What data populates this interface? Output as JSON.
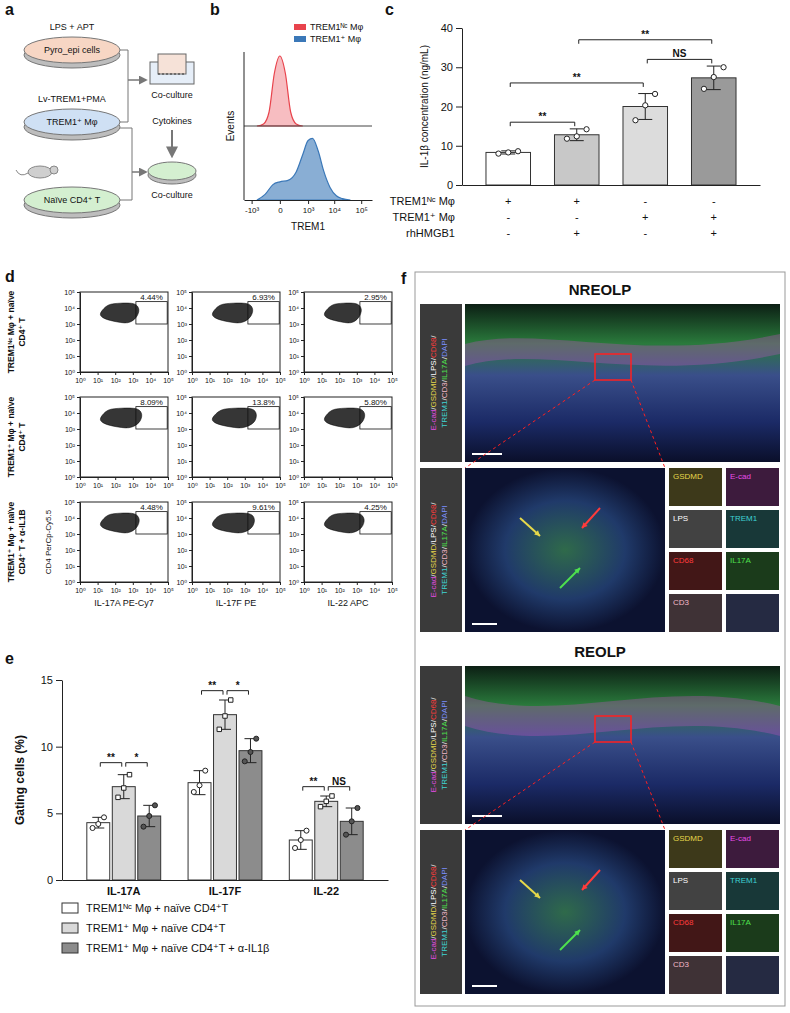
{
  "schematic": {
    "label": "a",
    "steps": [
      {
        "treatment": "LPS + APT",
        "cells": "Pyro_epi cells"
      },
      {
        "treatment": "Lv-TREM1+PMA",
        "cells": "TREM1⁺ Mφ"
      },
      {
        "cells": "Naïve CD4⁺ T"
      }
    ],
    "co_culture": [
      "Co-culture",
      "Co-culture"
    ],
    "cytokines": "Cytokines"
  },
  "chart_data": [
    {
      "label": "b",
      "type": "line",
      "x_label": "TREM1",
      "y_label": "Events",
      "log": "x",
      "xlim": [
        -2000,
        250000
      ],
      "xticks": [
        {
          "value": -1000,
          "label": "-10³"
        },
        0,
        {
          "value": 1000,
          "label": "10³"
        },
        {
          "value": 10000,
          "label": "10⁴"
        },
        {
          "value": 100000,
          "label": "10⁵"
        }
      ],
      "ylim": [
        0,
        100
      ],
      "tick_labels": "x",
      "legend": "top right",
      "series": [
        {
          "name": "TREM1ᴺᶜ Mφ",
          "color": "#e8434c",
          "x": [
            -600,
            -300,
            -150,
            -60,
            0,
            60,
            150,
            300,
            600
          ],
          "values": [
            0,
            3,
            20,
            75,
            100,
            75,
            20,
            3,
            0
          ]
        },
        {
          "name": "TREM1⁺ Mφ",
          "color": "#3b78b8",
          "x": [
            -600,
            -250,
            -80,
            0,
            100,
            300,
            600,
            1000,
            1500,
            2500,
            4000,
            7000,
            12000,
            20000,
            40000
          ],
          "values": [
            0,
            8,
            22,
            26,
            28,
            40,
            65,
            85,
            88,
            70,
            42,
            18,
            6,
            2,
            0
          ]
        }
      ]
    },
    {
      "label": "c",
      "type": "bar",
      "y_label": "IL-1β concentration (ng/mL)",
      "categories": [
        null,
        null,
        null,
        null
      ],
      "values": [
        8.3,
        12.8,
        20.0,
        27.3
      ],
      "errors": [
        0.4,
        1.5,
        3.3,
        3.0
      ],
      "points": [
        [
          8.0,
          8.3,
          8.6
        ],
        [
          11.8,
          12.4,
          14.2
        ],
        [
          16.5,
          20.3,
          23.2
        ],
        [
          24.5,
          27.5,
          30.0
        ]
      ],
      "colors": [
        "#ffffff",
        "#c8c8c8",
        "#dcdcdc",
        "#9a9a9a"
      ],
      "marker": "circle",
      "ylim": [
        0,
        40
      ],
      "yticks": [
        0,
        10,
        20,
        30,
        40
      ],
      "conditions": [
        {
          "name": "TREM1ᴺᶜ Mφ",
          "signs": [
            "+",
            "+",
            "-",
            "-"
          ]
        },
        {
          "name": "TREM1⁺ Mφ",
          "signs": [
            "-",
            "-",
            "+",
            "+"
          ]
        },
        {
          "name": "rhHMGB1",
          "signs": [
            "-",
            "+",
            "-",
            "+"
          ]
        }
      ],
      "significance": [
        {
          "from": 0,
          "to": 1,
          "text": "**",
          "y": 16
        },
        {
          "from": 0,
          "to": 2,
          "text": "**",
          "y": 26
        },
        {
          "from": 2,
          "to": 3,
          "text": "NS",
          "y": 32
        },
        {
          "from": 1,
          "to": 3,
          "text": "**",
          "y": 37
        }
      ]
    },
    {
      "label": "d",
      "type": "scatter",
      "log": true,
      "y_label": "CD4 PerCp-Cy5.5",
      "x_labels": [
        "IL-17A PE-Cy7",
        "IL-17F PE",
        "IL-22 APC"
      ],
      "row_labels": [
        "TREM1ᴺᶜ Mφ + naïve CD4⁺ T",
        "TREM1⁺ Mφ + naïve CD4⁺ T",
        "TREM1⁺ Mφ + naïve CD4⁺ T + α-IL1B"
      ],
      "xlim": [
        1,
        100000
      ],
      "ylim": [
        1,
        100000
      ],
      "xticks": [
        {
          "value": 1,
          "label": "10⁰"
        },
        {
          "value": 10,
          "label": "10¹"
        },
        {
          "value": 100,
          "label": "10²"
        },
        {
          "value": 1000,
          "label": "10³"
        },
        {
          "value": 10000,
          "label": "10⁴"
        },
        {
          "value": 100000,
          "label": "10⁵"
        }
      ],
      "yticks": [
        {
          "value": 1,
          "label": "10⁰"
        },
        {
          "value": 10,
          "label": "10¹"
        },
        {
          "value": 100,
          "label": "10²"
        },
        {
          "value": 1000,
          "label": "10³"
        },
        {
          "value": 10000,
          "label": "10⁴"
        },
        {
          "value": 100000,
          "label": "10⁵"
        }
      ],
      "plots": [
        [
          {
            "percent": "4.44%",
            "gate": {
              "x": [
                1500,
                90000
              ],
              "y": [
                1000,
                25000
              ]
            },
            "cloud": {
              "x": [
                15,
                40,
                200,
                1200,
                2200,
                1500,
                500,
                80,
                20
              ],
              "y": [
                5000,
                15000,
                20000,
                18000,
                8000,
                2500,
                1200,
                1500,
                2500
              ]
            }
          },
          {
            "percent": "6.93%",
            "gate": {
              "x": [
                1500,
                90000
              ],
              "y": [
                1000,
                25000
              ]
            },
            "cloud": {
              "x": [
                15,
                40,
                220,
                1500,
                2800,
                1900,
                550,
                80,
                20
              ],
              "y": [
                5000,
                15000,
                20000,
                18000,
                8000,
                2500,
                1200,
                1500,
                2500
              ]
            }
          },
          {
            "percent": "2.95%",
            "gate": {
              "x": [
                1500,
                90000
              ],
              "y": [
                1000,
                25000
              ]
            },
            "cloud": {
              "x": [
                15,
                40,
                180,
                1000,
                1800,
                1250,
                450,
                80,
                20
              ],
              "y": [
                5000,
                15000,
                20000,
                18000,
                8000,
                2500,
                1200,
                1500,
                2500
              ]
            }
          }
        ],
        [
          {
            "percent": "8.09%",
            "gate": {
              "x": [
                1500,
                90000
              ],
              "y": [
                1000,
                25000
              ]
            },
            "cloud": {
              "x": [
                15,
                40,
                240,
                1700,
                3200,
                2200,
                600,
                80,
                20
              ],
              "y": [
                5000,
                15000,
                20000,
                18000,
                8000,
                2500,
                1200,
                1500,
                2500
              ]
            }
          },
          {
            "percent": "13.8%",
            "gate": {
              "x": [
                1500,
                90000
              ],
              "y": [
                1000,
                25000
              ]
            },
            "cloud": {
              "x": [
                15,
                45,
                280,
                2400,
                4500,
                3100,
                700,
                90,
                20
              ],
              "y": [
                5000,
                15000,
                20000,
                18000,
                8000,
                2500,
                1200,
                1500,
                2500
              ]
            }
          },
          {
            "percent": "5.80%",
            "gate": {
              "x": [
                1500,
                90000
              ],
              "y": [
                1000,
                25000
              ]
            },
            "cloud": {
              "x": [
                15,
                40,
                220,
                1500,
                2800,
                1900,
                550,
                80,
                20
              ],
              "y": [
                5000,
                15000,
                20000,
                18000,
                8000,
                2500,
                1200,
                1500,
                2500
              ]
            }
          }
        ],
        [
          {
            "percent": "4.48%",
            "gate": {
              "x": [
                1500,
                90000
              ],
              "y": [
                1000,
                25000
              ]
            },
            "cloud": {
              "x": [
                15,
                40,
                200,
                1250,
                2300,
                1600,
                500,
                80,
                20
              ],
              "y": [
                5000,
                15000,
                20000,
                18000,
                8000,
                2500,
                1200,
                1500,
                2500
              ]
            }
          },
          {
            "percent": "9.61%",
            "gate": {
              "x": [
                1500,
                90000
              ],
              "y": [
                1000,
                25000
              ]
            },
            "cloud": {
              "x": [
                15,
                40,
                250,
                1900,
                3500,
                2400,
                620,
                80,
                20
              ],
              "y": [
                5000,
                15000,
                20000,
                18000,
                8000,
                2500,
                1200,
                1500,
                2500
              ]
            }
          },
          {
            "percent": "4.25%",
            "gate": {
              "x": [
                1500,
                90000
              ],
              "y": [
                1000,
                25000
              ]
            },
            "cloud": {
              "x": [
                15,
                40,
                210,
                1400,
                2600,
                1800,
                520,
                80,
                20
              ],
              "y": [
                5000,
                15000,
                20000,
                18000,
                8000,
                2500,
                1200,
                1500,
                2500
              ]
            }
          }
        ]
      ]
    },
    {
      "label": "e",
      "type": "bar",
      "y_label": "Gating cells (%)",
      "categories": [
        "IL-17A",
        "IL-17F",
        "IL-22"
      ],
      "ylim": [
        0,
        15
      ],
      "yticks": [
        0,
        5,
        10,
        15
      ],
      "legend": "bottom",
      "series": [
        {
          "name": "TREM1ᴺᶜ Mφ + naïve CD4⁺T",
          "color": "#ffffff",
          "marker": "circle",
          "values": [
            4.3,
            7.3,
            3.0
          ],
          "errors": [
            0.4,
            0.9,
            0.7
          ],
          "points": [
            [
              3.9,
              4.2,
              4.7
            ],
            [
              6.6,
              7.1,
              8.2
            ],
            [
              2.4,
              3.0,
              3.7
            ]
          ]
        },
        {
          "name": "TREM1⁺ Mφ + naïve CD4⁺T",
          "color": "#d9d9d9",
          "marker": "square",
          "values": [
            7.0,
            12.4,
            5.9
          ],
          "errors": [
            0.9,
            1.1,
            0.4
          ],
          "points": [
            [
              6.2,
              6.9,
              7.9
            ],
            [
              11.3,
              12.3,
              13.5
            ],
            [
              5.5,
              5.9,
              6.3
            ]
          ]
        },
        {
          "name": "TREM1⁺ Mφ + naïve CD4⁺T + α-IL1β",
          "color": "#8c8c8c",
          "marker": "circle",
          "values": [
            4.8,
            9.7,
            4.4
          ],
          "errors": [
            0.8,
            0.9,
            1.0
          ],
          "points": [
            [
              4.0,
              4.8,
              5.6
            ],
            [
              8.9,
              9.6,
              10.6
            ],
            [
              3.4,
              4.4,
              5.4
            ]
          ]
        }
      ],
      "significance": [
        {
          "category": 0,
          "from": 0,
          "to": 1,
          "text": "**",
          "y": 8.8
        },
        {
          "category": 0,
          "from": 1,
          "to": 2,
          "text": "*",
          "y": 8.8
        },
        {
          "category": 1,
          "from": 0,
          "to": 1,
          "text": "**",
          "y": 14.2
        },
        {
          "category": 1,
          "from": 1,
          "to": 2,
          "text": "*",
          "y": 14.2
        },
        {
          "category": 2,
          "from": 0,
          "to": 1,
          "text": "**",
          "y": 7.0
        },
        {
          "category": 2,
          "from": 1,
          "to": 2,
          "text": "NS",
          "y": 7.0
        }
      ]
    }
  ],
  "images": {
    "label": "f",
    "separator": "/",
    "stains": [
      {
        "name": "E-cad",
        "color": "#e64ce6"
      },
      {
        "name": "GSDMD",
        "color": "#e6d84a"
      },
      {
        "name": "LPS",
        "color": "#ffffff"
      },
      {
        "name": "CD68",
        "color": "#ff3b3b"
      },
      {
        "name": "TREM1",
        "color": "#3fd3d3"
      },
      {
        "name": "CD3",
        "color": "#f2b8c8"
      },
      {
        "name": "IL17A",
        "color": "#4ee04e"
      },
      {
        "name": "DAPI",
        "color": "#7a90ff"
      }
    ],
    "panels": [
      {
        "title": "NREOLP"
      },
      {
        "title": "REOLP"
      }
    ],
    "channels": [
      "GSDMD",
      "E-cad",
      "LPS",
      "TREM1",
      "CD68",
      "IL17A",
      "CD3"
    ]
  }
}
